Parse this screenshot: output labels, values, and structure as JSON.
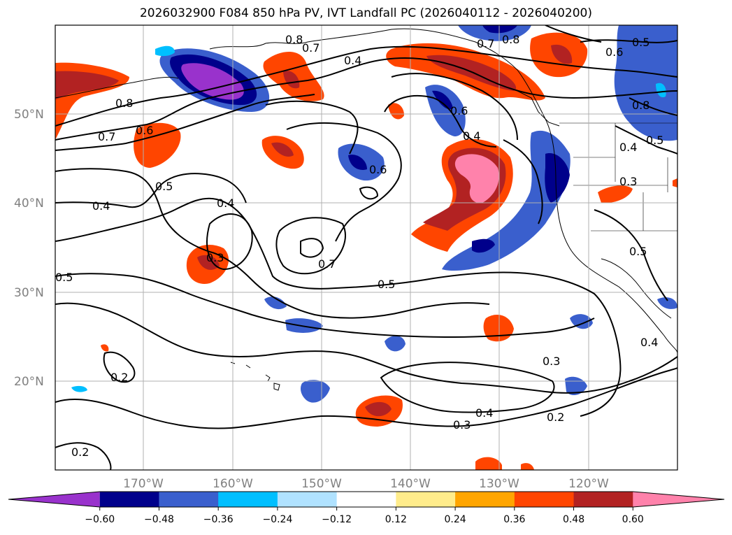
{
  "title": "2026032900 F084 850 hPa PV, IVT Landfall PC (2026040112 - 2026040200)",
  "map": {
    "latitude_labels": [
      "50°N",
      "40°N",
      "30°N",
      "20°N"
    ],
    "longitude_labels": [
      "170°W",
      "160°W",
      "150°W",
      "140°W",
      "130°W",
      "120°W"
    ],
    "gridlines": true
  },
  "contours": {
    "labels": [
      "0.8",
      "0.7",
      "0.6",
      "0.4",
      "0.5",
      "0.4",
      "0.6",
      "0.4",
      "0.3",
      "0.7",
      "0.5",
      "0.5",
      "0.4",
      "0.3",
      "0.4",
      "0.3",
      "0.2",
      "0.2",
      "0.4",
      "0.5",
      "0.7",
      "0.8",
      "0.6",
      "0.8",
      "0.2",
      "0.4",
      "0.3",
      "0.6",
      "0.5",
      "0.5",
      "0.8",
      "0.7"
    ]
  },
  "colorbar": {
    "ticks": [
      "−0.60",
      "−0.48",
      "−0.36",
      "−0.24",
      "−0.12",
      "0.12",
      "0.24",
      "0.36",
      "0.48",
      "0.60"
    ],
    "colors": [
      "#9932CC",
      "#00008B",
      "#3A5FCD",
      "#00BFFF",
      "#B0E2FF",
      "#FFFFFF",
      "#FFEC8B",
      "#FFA500",
      "#FF4500",
      "#B22222",
      "#FF82AB"
    ],
    "extend": "both"
  }
}
